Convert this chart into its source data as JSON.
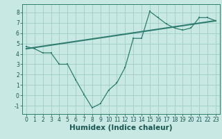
{
  "line1_x": [
    0,
    1,
    2,
    3,
    4,
    5,
    6,
    7,
    8,
    9,
    10,
    11,
    12,
    13,
    14,
    15,
    16,
    17,
    18,
    19,
    20,
    21,
    22,
    23
  ],
  "line1_y": [
    4.7,
    4.5,
    4.1,
    4.1,
    3.0,
    3.0,
    1.5,
    0.1,
    -1.2,
    -0.8,
    0.5,
    1.2,
    2.7,
    5.5,
    5.5,
    8.1,
    7.5,
    6.9,
    6.5,
    6.3,
    6.5,
    7.5,
    7.5,
    7.2
  ],
  "line2_x": [
    0,
    23
  ],
  "line2_y": [
    4.5,
    7.2
  ],
  "color": "#2e7d6e",
  "bg_color": "#c8e8e4",
  "grid_color": "#a0ccc8",
  "xlabel": "Humidex (Indice chaleur)",
  "ylim": [
    -1.8,
    8.8
  ],
  "xlim": [
    -0.5,
    23.5
  ],
  "yticks": [
    -1,
    0,
    1,
    2,
    3,
    4,
    5,
    6,
    7,
    8
  ],
  "xticks": [
    0,
    1,
    2,
    3,
    4,
    5,
    6,
    7,
    8,
    9,
    10,
    11,
    12,
    13,
    14,
    15,
    16,
    17,
    18,
    19,
    20,
    21,
    22,
    23
  ],
  "tick_fontsize": 5.5,
  "xlabel_fontsize": 7.5
}
